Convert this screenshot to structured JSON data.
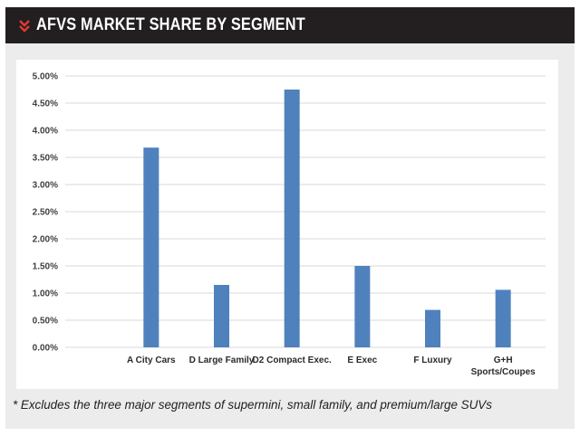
{
  "header": {
    "title": "AFVS MARKET SHARE BY SEGMENT",
    "icon": "double-chevron-down-icon",
    "accent": "#e03a2f"
  },
  "footnote": "* Excludes the three major segments of supermini, small family, and premium/large SUVs",
  "chart_data": {
    "type": "bar",
    "title": "",
    "xlabel": "",
    "ylabel": "",
    "categories": [
      [
        "A City Cars"
      ],
      [
        "D Large Family"
      ],
      [
        "D2 Compact Exec."
      ],
      [
        "E Exec"
      ],
      [
        "F Luxury"
      ],
      [
        "G+H",
        "Sports/Coupes"
      ]
    ],
    "values": [
      0.0368,
      0.0115,
      0.0475,
      0.015,
      0.0069,
      0.0106
    ],
    "ylim": [
      0,
      0.05
    ],
    "yticks": [
      "0.00%",
      "0.50%",
      "1.00%",
      "1.50%",
      "2.00%",
      "2.50%",
      "3.00%",
      "3.50%",
      "4.00%",
      "4.50%",
      "5.00%"
    ],
    "grid": true,
    "legend": "none",
    "bar_color": "#4f81bd",
    "grid_color": "#d9d9d9"
  }
}
